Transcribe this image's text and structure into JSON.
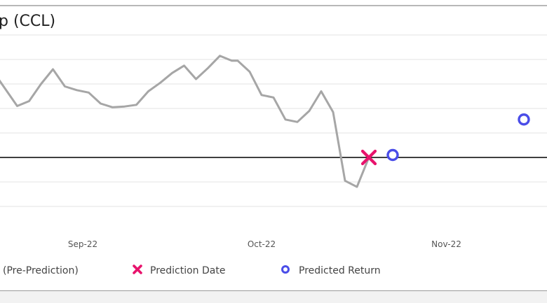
{
  "chart_data": {
    "type": "line",
    "title": "p (CCL)",
    "x_axis": {
      "ticks": [
        "Sep-22",
        "Oct-22",
        "Nov-22"
      ]
    },
    "y_axis": {
      "tick_labels_visible": false,
      "gridlines": 8
    },
    "grid": true,
    "baseline": 0,
    "series": [
      {
        "name": "(Pre-Prediction)",
        "color": "#a6a6a6",
        "marker": "none",
        "points": [
          {
            "x": "2022-08-17",
            "y": 3.5
          },
          {
            "x": "2022-08-19",
            "y": 2.8
          },
          {
            "x": "2022-08-21",
            "y": 2.1
          },
          {
            "x": "2022-08-23",
            "y": 2.3
          },
          {
            "x": "2022-08-25",
            "y": 3.0
          },
          {
            "x": "2022-08-27",
            "y": 3.6
          },
          {
            "x": "2022-08-29",
            "y": 2.9
          },
          {
            "x": "2022-08-31",
            "y": 2.75
          },
          {
            "x": "2022-09-02",
            "y": 2.65
          },
          {
            "x": "2022-09-04",
            "y": 2.2
          },
          {
            "x": "2022-09-06",
            "y": 2.05
          },
          {
            "x": "2022-09-08",
            "y": 2.08
          },
          {
            "x": "2022-09-10",
            "y": 2.15
          },
          {
            "x": "2022-09-12",
            "y": 2.7
          },
          {
            "x": "2022-09-14",
            "y": 3.05
          },
          {
            "x": "2022-09-16",
            "y": 3.45
          },
          {
            "x": "2022-09-18",
            "y": 3.75
          },
          {
            "x": "2022-09-20",
            "y": 3.2
          },
          {
            "x": "2022-09-22",
            "y": 3.65
          },
          {
            "x": "2022-09-24",
            "y": 4.15
          },
          {
            "x": "2022-09-26",
            "y": 3.95
          },
          {
            "x": "2022-09-27",
            "y": 3.95
          },
          {
            "x": "2022-09-29",
            "y": 3.5
          },
          {
            "x": "2022-10-01",
            "y": 2.55
          },
          {
            "x": "2022-10-03",
            "y": 2.45
          },
          {
            "x": "2022-10-05",
            "y": 1.55
          },
          {
            "x": "2022-10-07",
            "y": 1.45
          },
          {
            "x": "2022-10-09",
            "y": 1.9
          },
          {
            "x": "2022-10-11",
            "y": 2.7
          },
          {
            "x": "2022-10-13",
            "y": 1.85
          },
          {
            "x": "2022-10-15",
            "y": -0.95
          },
          {
            "x": "2022-10-17",
            "y": -1.2
          },
          {
            "x": "2022-10-19",
            "y": 0.0
          }
        ]
      },
      {
        "name": "Prediction Date",
        "color": "#e8126c",
        "marker": "x",
        "points": [
          {
            "x": "2022-10-19",
            "y": 0.0
          }
        ]
      },
      {
        "name": "Predicted Return",
        "color": "#4a4de8",
        "marker": "circle-open",
        "points": [
          {
            "x": "2022-10-23",
            "y": 0.1
          },
          {
            "x": "2022-11-14",
            "y": 1.55
          }
        ]
      }
    ],
    "legend": {
      "placement": "bottom",
      "entries": [
        "(Pre-Prediction)",
        "Prediction Date",
        "Predicted Return"
      ]
    }
  }
}
